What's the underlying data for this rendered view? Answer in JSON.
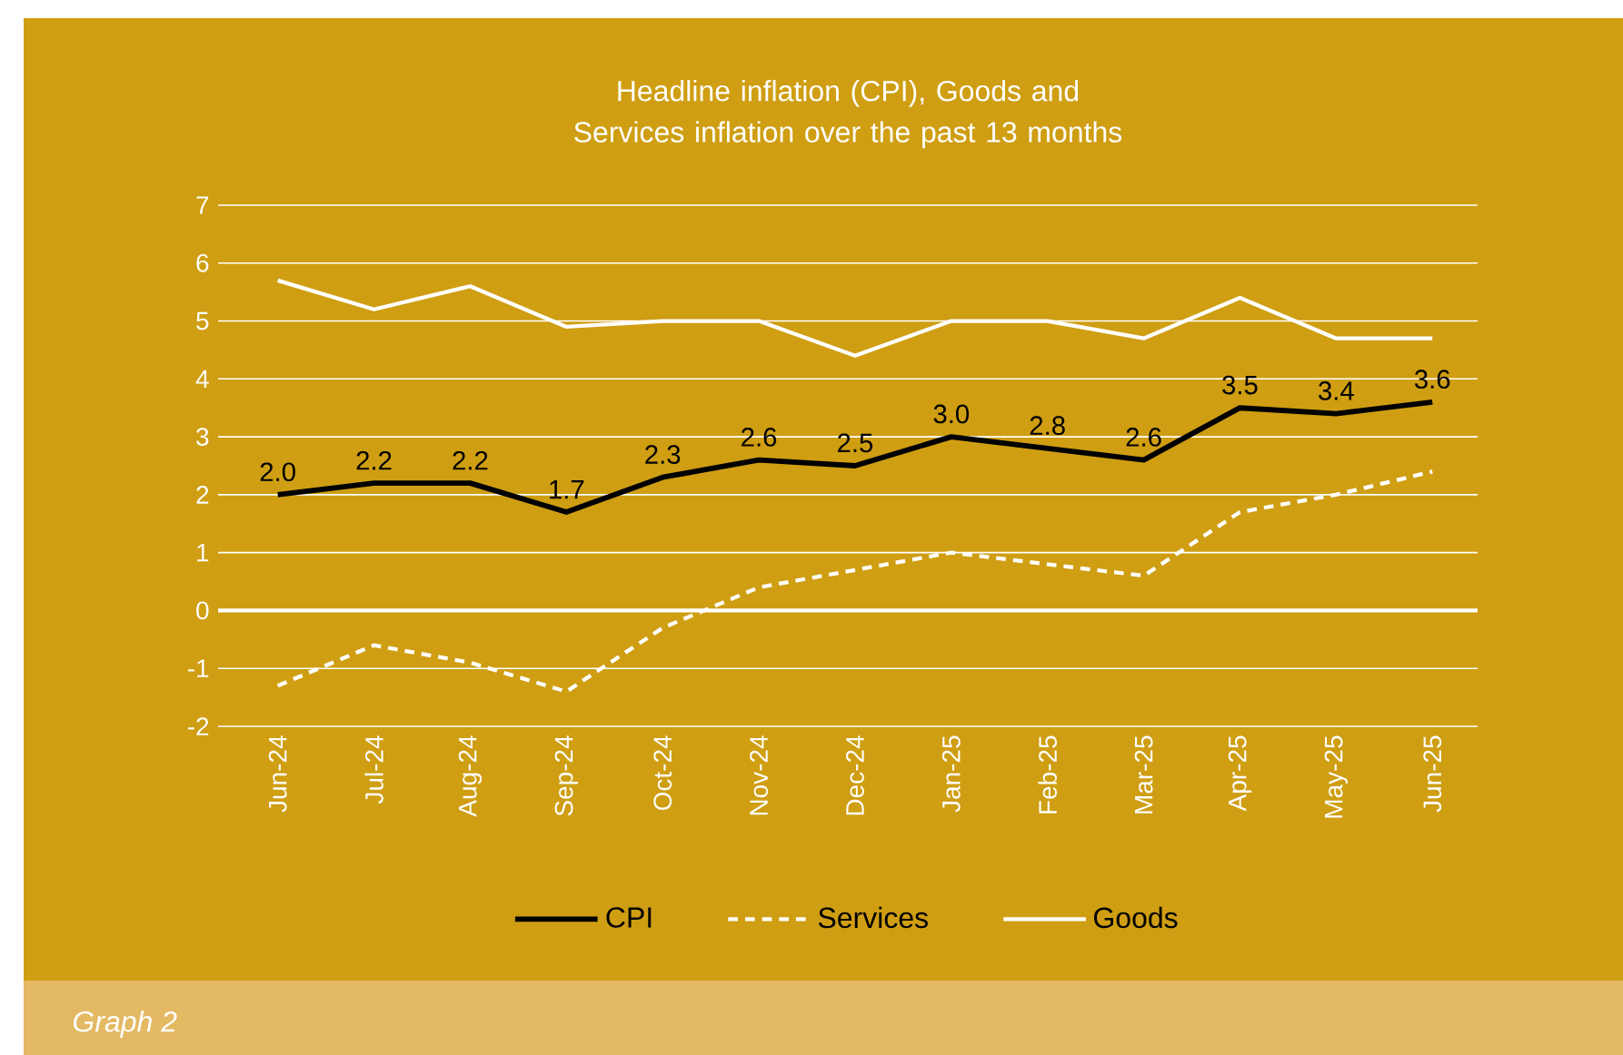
{
  "chart_data": {
    "type": "line",
    "title": "Headline inflation (CPI), Goods and Services inflation over the past 13 months",
    "categories": [
      "Jun-24",
      "Jul-24",
      "Aug-24",
      "Sep-24",
      "Oct-24",
      "Nov-24",
      "Dec-24",
      "Jan-25",
      "Feb-25",
      "Mar-25",
      "Apr-25",
      "May-25",
      "Jun-25"
    ],
    "series": [
      {
        "name": "CPI",
        "color": "#000000",
        "line_style": "solid",
        "values": [
          2.0,
          2.2,
          2.2,
          1.7,
          2.3,
          2.6,
          2.5,
          3.0,
          2.8,
          2.6,
          3.5,
          3.4,
          3.6
        ],
        "value_labels": [
          "2.0",
          "2.2",
          "2.2",
          "1.7",
          "2.3",
          "2.6",
          "2.5",
          "3.0",
          "2.8",
          "2.6",
          "3.5",
          "3.4",
          "3.6"
        ]
      },
      {
        "name": "Services",
        "color": "#ffffff",
        "line_style": "dashed",
        "values": [
          -1.3,
          -0.6,
          -0.9,
          -1.4,
          -0.3,
          0.4,
          0.7,
          1.0,
          0.8,
          0.6,
          1.7,
          2.0,
          2.4
        ]
      },
      {
        "name": "Goods",
        "color": "#ffffff",
        "line_style": "solid",
        "values": [
          5.7,
          5.2,
          5.6,
          4.9,
          5.0,
          5.0,
          4.4,
          5.0,
          5.0,
          4.7,
          5.4,
          4.7,
          4.7
        ]
      }
    ],
    "ylim": [
      -2,
      7
    ],
    "yticks": [
      -2,
      -1,
      0,
      1,
      2,
      3,
      4,
      5,
      6,
      7
    ],
    "grid": "y",
    "legend": "bottom",
    "marker": "none",
    "ref_lines": [
      {
        "axis": "y",
        "value": 0,
        "color": "#ffffff"
      }
    ],
    "annotations": [
      "Graph 2"
    ]
  }
}
